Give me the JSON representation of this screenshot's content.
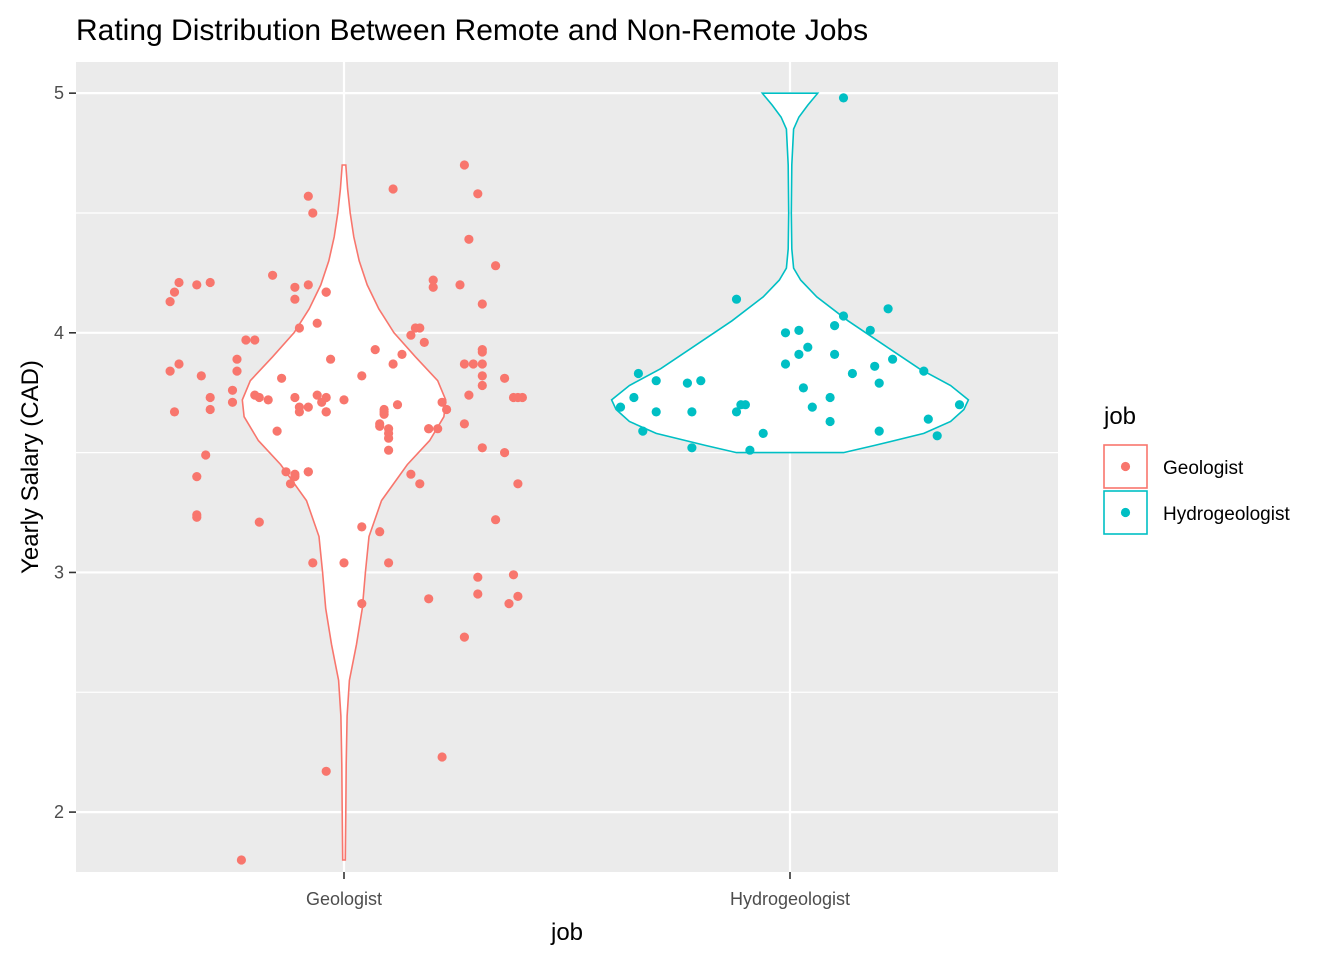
{
  "chart_data": {
    "type": "violin",
    "title": "Rating Distribution Between Remote and Non-Remote Jobs",
    "xlabel": "job",
    "ylabel": "Yearly Salary (CAD)",
    "categories": [
      "Geologist",
      "Hydrogeologist"
    ],
    "ylim": [
      1.75,
      5.13
    ],
    "yticks": [
      2,
      3,
      4,
      5
    ],
    "grid": true,
    "legend": {
      "title": "job",
      "position": "right",
      "entries": [
        "Geologist",
        "Hydrogeologist"
      ]
    },
    "series": [
      {
        "name": "Geologist",
        "color": "#F8766D",
        "violin_range": [
          1.8,
          4.7
        ],
        "violin_profile": [
          [
            1.8,
            0.003
          ],
          [
            2.0,
            0.004
          ],
          [
            2.2,
            0.005
          ],
          [
            2.4,
            0.007
          ],
          [
            2.55,
            0.012
          ],
          [
            2.7,
            0.028
          ],
          [
            2.85,
            0.041
          ],
          [
            3.0,
            0.048
          ],
          [
            3.15,
            0.056
          ],
          [
            3.3,
            0.084
          ],
          [
            3.45,
            0.142
          ],
          [
            3.55,
            0.192
          ],
          [
            3.65,
            0.224
          ],
          [
            3.72,
            0.228
          ],
          [
            3.8,
            0.21
          ],
          [
            3.9,
            0.16
          ],
          [
            4.0,
            0.112
          ],
          [
            4.1,
            0.078
          ],
          [
            4.2,
            0.052
          ],
          [
            4.3,
            0.034
          ],
          [
            4.4,
            0.022
          ],
          [
            4.5,
            0.014
          ],
          [
            4.6,
            0.008
          ],
          [
            4.7,
            0.004
          ]
        ],
        "points": [
          [
            -0.39,
            4.13
          ],
          [
            -0.38,
            4.17
          ],
          [
            -0.37,
            4.21
          ],
          [
            -0.39,
            3.84
          ],
          [
            -0.38,
            3.67
          ],
          [
            -0.37,
            3.87
          ],
          [
            -0.33,
            4.2
          ],
          [
            -0.3,
            4.21
          ],
          [
            -0.32,
            3.82
          ],
          [
            -0.3,
            3.73
          ],
          [
            -0.3,
            3.68
          ],
          [
            -0.24,
            3.89
          ],
          [
            -0.24,
            3.84
          ],
          [
            -0.25,
            3.76
          ],
          [
            -0.25,
            3.71
          ],
          [
            -0.22,
            3.97
          ],
          [
            -0.2,
            3.97
          ],
          [
            -0.2,
            3.74
          ],
          [
            -0.19,
            3.73
          ],
          [
            -0.16,
            4.24
          ],
          [
            -0.14,
            3.81
          ],
          [
            -0.17,
            3.72
          ],
          [
            -0.15,
            3.59
          ],
          [
            -0.13,
            3.42
          ],
          [
            -0.33,
            3.4
          ],
          [
            -0.31,
            3.49
          ],
          [
            -0.33,
            3.24
          ],
          [
            -0.33,
            3.23
          ],
          [
            -0.19,
            3.21
          ],
          [
            -0.23,
            1.8
          ],
          [
            -0.11,
            3.73
          ],
          [
            -0.1,
            3.69
          ],
          [
            -0.1,
            3.67
          ],
          [
            -0.11,
            3.41
          ],
          [
            -0.12,
            3.37
          ],
          [
            -0.11,
            3.4
          ],
          [
            -0.11,
            4.14
          ],
          [
            -0.11,
            4.19
          ],
          [
            -0.08,
            4.2
          ],
          [
            -0.1,
            4.02
          ],
          [
            -0.08,
            3.69
          ],
          [
            -0.06,
            3.74
          ],
          [
            -0.04,
            3.73
          ],
          [
            -0.05,
            3.71
          ],
          [
            -0.04,
            3.67
          ],
          [
            -0.08,
            3.42
          ],
          [
            -0.07,
            3.04
          ],
          [
            -0.08,
            4.57
          ],
          [
            -0.07,
            4.5
          ],
          [
            -0.06,
            4.04
          ],
          [
            -0.04,
            4.17
          ],
          [
            -0.04,
            4.17
          ],
          [
            -0.08,
            3.42
          ],
          [
            -0.04,
            3.67
          ],
          [
            -0.04,
            2.17
          ],
          [
            -0.03,
            3.89
          ],
          [
            0.0,
            3.04
          ],
          [
            0.0,
            3.72
          ],
          [
            0.04,
            3.82
          ],
          [
            0.04,
            3.19
          ],
          [
            0.04,
            2.87
          ],
          [
            0.07,
            3.93
          ],
          [
            0.08,
            3.62
          ],
          [
            0.08,
            3.61
          ],
          [
            0.09,
            3.67
          ],
          [
            0.09,
            3.68
          ],
          [
            0.09,
            3.66
          ],
          [
            0.1,
            3.6
          ],
          [
            0.1,
            3.58
          ],
          [
            0.1,
            3.56
          ],
          [
            0.1,
            3.51
          ],
          [
            0.08,
            3.17
          ],
          [
            0.1,
            3.04
          ],
          [
            0.11,
            4.6
          ],
          [
            0.11,
            3.87
          ],
          [
            0.12,
            3.7
          ],
          [
            0.13,
            3.91
          ],
          [
            0.15,
            3.99
          ],
          [
            0.15,
            3.41
          ],
          [
            0.16,
            4.02
          ],
          [
            0.17,
            4.02
          ],
          [
            0.17,
            3.37
          ],
          [
            0.18,
            3.96
          ],
          [
            0.19,
            3.6
          ],
          [
            0.19,
            3.6
          ],
          [
            0.2,
            4.22
          ],
          [
            0.2,
            4.19
          ],
          [
            0.21,
            3.6
          ],
          [
            0.22,
            3.71
          ],
          [
            0.23,
            3.68
          ],
          [
            0.19,
            2.89
          ],
          [
            0.22,
            2.23
          ],
          [
            0.26,
            4.2
          ],
          [
            0.27,
            4.7
          ],
          [
            0.27,
            3.87
          ],
          [
            0.28,
            3.74
          ],
          [
            0.27,
            3.62
          ],
          [
            0.27,
            2.73
          ],
          [
            0.28,
            4.39
          ],
          [
            0.29,
            3.87
          ],
          [
            0.3,
            4.58
          ],
          [
            0.3,
            2.98
          ],
          [
            0.3,
            2.91
          ],
          [
            0.31,
            4.12
          ],
          [
            0.31,
            3.93
          ],
          [
            0.31,
            3.92
          ],
          [
            0.31,
            3.87
          ],
          [
            0.31,
            3.82
          ],
          [
            0.31,
            3.78
          ],
          [
            0.31,
            3.52
          ],
          [
            0.34,
            3.22
          ],
          [
            0.34,
            4.28
          ],
          [
            0.36,
            3.81
          ],
          [
            0.36,
            3.5
          ],
          [
            0.37,
            2.87
          ],
          [
            0.38,
            3.73
          ],
          [
            0.38,
            2.99
          ],
          [
            0.39,
            3.73
          ],
          [
            0.39,
            3.37
          ],
          [
            0.39,
            2.9
          ],
          [
            0.4,
            3.73
          ]
        ]
      },
      {
        "name": "Hydrogeologist",
        "color": "#00BFC4",
        "violin_range": [
          3.5,
          5.0
        ],
        "violin_profile": [
          [
            3.5,
            0.12
          ],
          [
            3.53,
            0.19
          ],
          [
            3.58,
            0.3
          ],
          [
            3.63,
            0.36
          ],
          [
            3.68,
            0.39
          ],
          [
            3.72,
            0.4
          ],
          [
            3.78,
            0.36
          ],
          [
            3.85,
            0.29
          ],
          [
            3.95,
            0.21
          ],
          [
            4.05,
            0.13
          ],
          [
            4.15,
            0.06
          ],
          [
            4.22,
            0.024
          ],
          [
            4.27,
            0.008
          ],
          [
            4.35,
            0.004
          ],
          [
            4.5,
            0.003
          ],
          [
            4.7,
            0.004
          ],
          [
            4.85,
            0.008
          ],
          [
            4.9,
            0.02
          ],
          [
            4.95,
            0.04
          ],
          [
            5.0,
            0.062
          ]
        ],
        "points": [
          [
            -0.38,
            3.69
          ],
          [
            -0.35,
            3.73
          ],
          [
            -0.34,
            3.83
          ],
          [
            -0.33,
            3.59
          ],
          [
            -0.3,
            3.67
          ],
          [
            -0.3,
            3.8
          ],
          [
            -0.23,
            3.79
          ],
          [
            -0.22,
            3.52
          ],
          [
            -0.22,
            3.67
          ],
          [
            -0.2,
            3.8
          ],
          [
            -0.12,
            3.67
          ],
          [
            -0.12,
            4.14
          ],
          [
            -0.11,
            3.7
          ],
          [
            -0.1,
            3.7
          ],
          [
            -0.09,
            3.51
          ],
          [
            -0.06,
            3.58
          ],
          [
            -0.01,
            4.0
          ],
          [
            -0.01,
            3.87
          ],
          [
            0.02,
            3.91
          ],
          [
            0.02,
            4.01
          ],
          [
            0.03,
            3.77
          ],
          [
            0.04,
            3.94
          ],
          [
            0.05,
            3.69
          ],
          [
            0.09,
            3.63
          ],
          [
            0.09,
            3.73
          ],
          [
            0.1,
            4.03
          ],
          [
            0.1,
            3.91
          ],
          [
            0.12,
            4.07
          ],
          [
            0.12,
            4.98
          ],
          [
            0.14,
            3.83
          ],
          [
            0.18,
            4.01
          ],
          [
            0.19,
            3.86
          ],
          [
            0.2,
            3.79
          ],
          [
            0.2,
            3.59
          ],
          [
            0.22,
            4.1
          ],
          [
            0.23,
            3.89
          ],
          [
            0.3,
            3.84
          ],
          [
            0.31,
            3.64
          ],
          [
            0.33,
            3.57
          ],
          [
            0.38,
            3.7
          ]
        ]
      }
    ]
  }
}
